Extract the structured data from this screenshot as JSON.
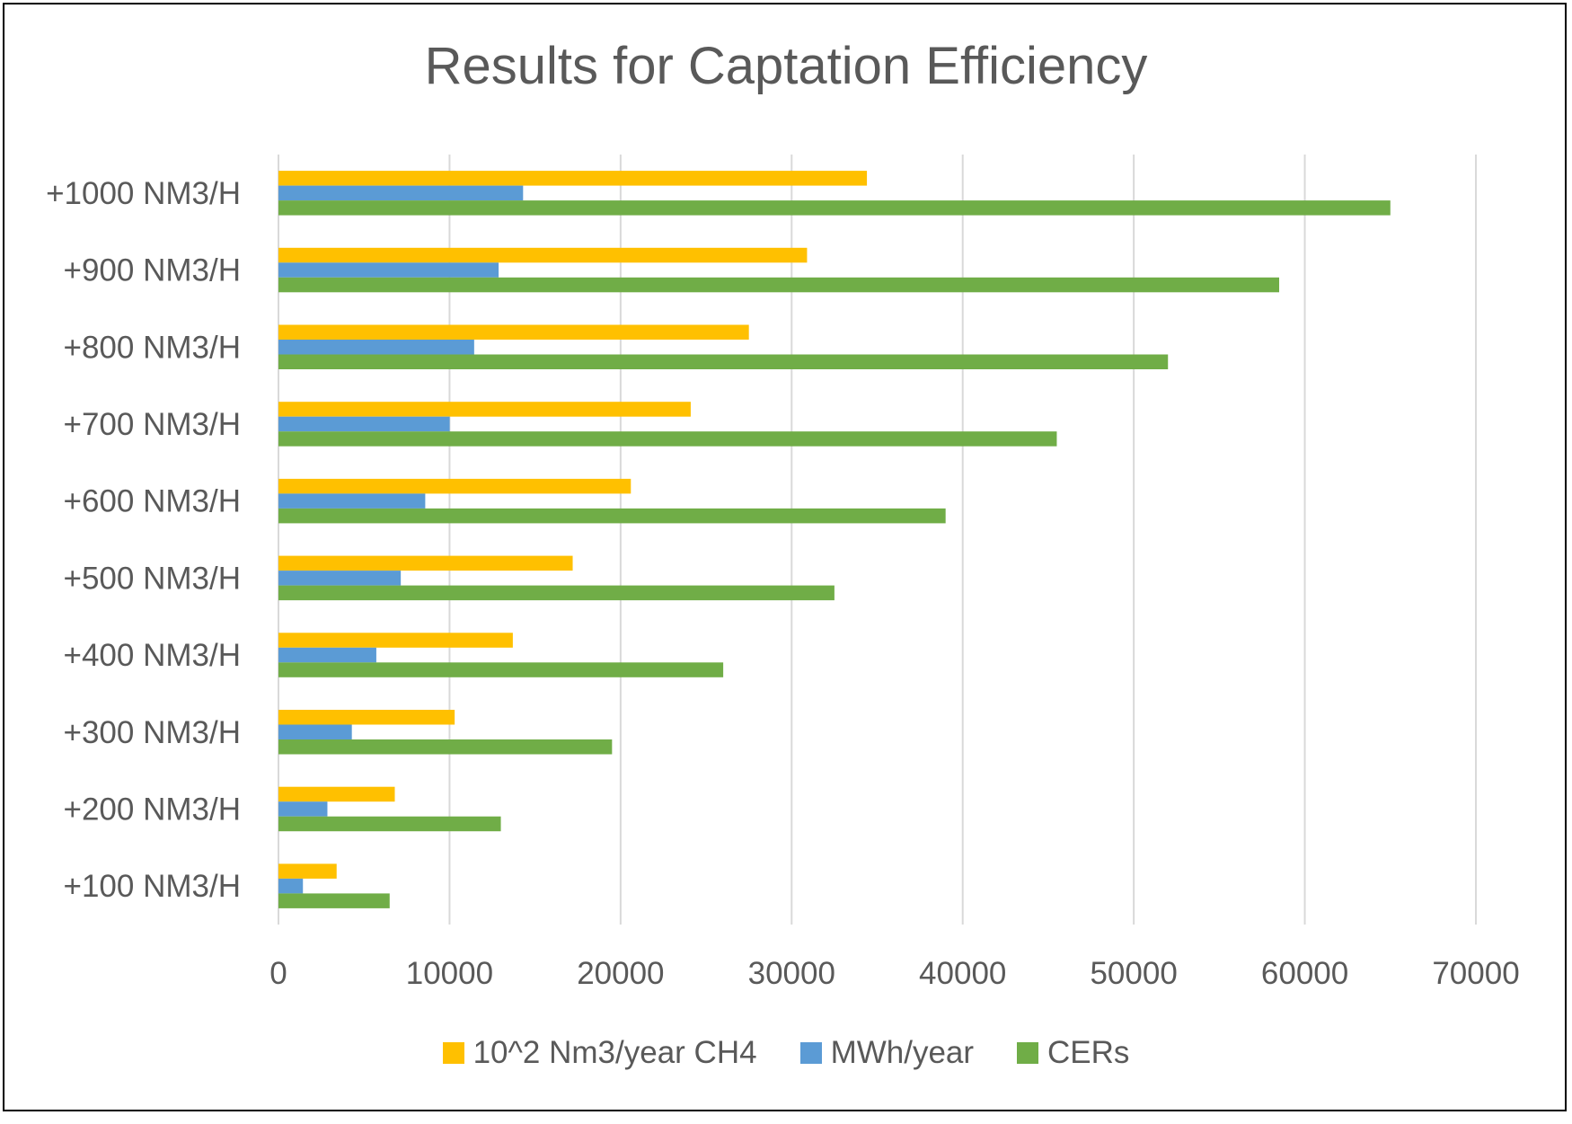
{
  "chart_data": {
    "type": "bar",
    "orientation": "horizontal",
    "title": "Results for Captation Efficiency",
    "categories": [
      "+100 NM3/H",
      "+200 NM3/H",
      "+300 NM3/H",
      "+400 NM3/H",
      "+500 NM3/H",
      "+600 NM3/H",
      "+700 NM3/H",
      "+800 NM3/H",
      "+900 NM3/H",
      "+1000 NM3/H"
    ],
    "series": [
      {
        "name": "10^2 Nm3/year CH4",
        "color": "#FFC000",
        "values": [
          3400,
          6800,
          10300,
          13700,
          17200,
          20600,
          24100,
          27500,
          30900,
          34400
        ]
      },
      {
        "name": "MWh/year",
        "color": "#5B9BD5",
        "values": [
          1430,
          2860,
          4290,
          5720,
          7150,
          8580,
          10010,
          11440,
          12870,
          14300
        ]
      },
      {
        "name": "CERs",
        "color": "#70AD47",
        "values": [
          6500,
          13000,
          19500,
          26000,
          32500,
          39000,
          45500,
          52000,
          58500,
          65000
        ]
      }
    ],
    "xticks": [
      "0",
      "10000",
      "20000",
      "30000",
      "40000",
      "50000",
      "60000",
      "70000"
    ],
    "xlim": [
      0,
      70000
    ],
    "grid": "vertical",
    "legend_position": "bottom"
  }
}
